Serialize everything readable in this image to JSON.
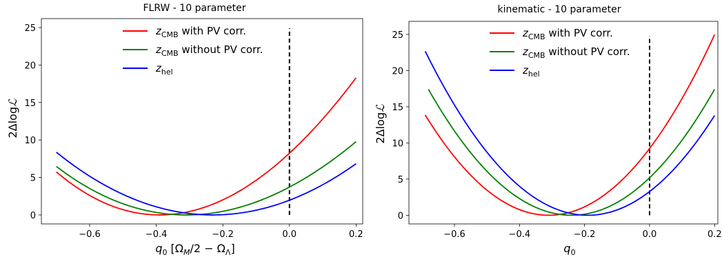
{
  "chart_data": [
    {
      "type": "line",
      "title": "FLRW - 10 parameter",
      "xlabel": "q₀ [Ω_M/2 − Ω_Λ]",
      "xlabel_parts": {
        "main": "q",
        "sub": "0",
        "rest_open": " [Ω",
        "sub2": "M",
        "rest_mid": "/2 − Ω",
        "sub3": "Λ",
        "rest_close": "]"
      },
      "ylabel": "2ΔlogL",
      "xlim": [
        -0.745,
        0.22
      ],
      "ylim": [
        -1.2,
        26.2
      ],
      "xticks": [
        -0.6,
        -0.4,
        -0.2,
        0.0,
        0.2
      ],
      "xtick_labels": [
        "−0.6",
        "−0.4",
        "−0.2",
        "0.0",
        "0.2"
      ],
      "yticks": [
        0,
        5,
        10,
        15,
        20,
        25
      ],
      "ytick_labels": [
        "0",
        "5",
        "10",
        "15",
        "20",
        "25"
      ],
      "legend_location": "top-center",
      "vline": {
        "x": 0.0,
        "y_range": [
          0,
          24.9
        ],
        "style": "dashed",
        "color": "#000000"
      },
      "series": [
        {
          "name": "z_CMB with PV corr.",
          "label_main": "z",
          "label_sub": "CMB",
          "label_rest": " with PV corr.",
          "color": "#ff0000",
          "x_range": [
            -0.7,
            0.2
          ],
          "vertex": [
            -0.39,
            0.0
          ],
          "a": 57.3,
          "b": -8.0
        },
        {
          "name": "z_CMB without PV corr.",
          "label_main": "z",
          "label_sub": "CMB",
          "label_rest": " without PV corr.",
          "color": "#008000",
          "x_range": [
            -0.7,
            0.2
          ],
          "vertex": [
            -0.31,
            0.0
          ],
          "a": 40.4,
          "b": -5.5
        },
        {
          "name": "z_hel",
          "label_main": "z",
          "label_sub": "hel",
          "label_rest": "",
          "color": "#0000ff",
          "x_range": [
            -0.7,
            0.2
          ],
          "vertex": [
            -0.23,
            0.0
          ],
          "a": 37.4,
          "b": -1.0
        }
      ]
    },
    {
      "type": "line",
      "title": "kinematic - 10 parameter",
      "xlabel": "q₀",
      "xlabel_parts": {
        "main": "q",
        "sub": "0"
      },
      "ylabel": "2ΔlogL",
      "xlim": [
        -0.74,
        0.21
      ],
      "ylim": [
        -1.2,
        26.8
      ],
      "xticks": [
        -0.6,
        -0.4,
        -0.2,
        0.0,
        0.2
      ],
      "xtick_labels": [
        "−0.6",
        "−0.4",
        "−0.2",
        "0.0",
        "0.2"
      ],
      "yticks": [
        0,
        5,
        10,
        15,
        20,
        25
      ],
      "ytick_labels": [
        "0",
        "5",
        "10",
        "15",
        "20",
        "25"
      ],
      "legend_location": "top-center",
      "vline": {
        "x": 0.0,
        "y_range": [
          0,
          24.8
        ],
        "style": "dashed",
        "color": "#000000"
      },
      "series": [
        {
          "name": "z_CMB with PV corr.",
          "label_main": "z",
          "label_sub": "CMB",
          "label_rest": " with PV corr.",
          "color": "#ff0000",
          "x_range": [
            -0.69,
            0.2
          ],
          "vertex": [
            -0.31,
            0.0
          ],
          "a": 96.0,
          "b": 0.0
        },
        {
          "name": "z_CMB without PV corr.",
          "label_main": "z",
          "label_sub": "CMB",
          "label_rest": " without PV corr.",
          "color": "#008000",
          "x_range": [
            -0.68,
            0.2
          ],
          "vertex": [
            -0.24,
            0.0
          ],
          "a": 89.9,
          "b": 0.0
        },
        {
          "name": "z_hel",
          "label_main": "z",
          "label_sub": "hel",
          "label_rest": "",
          "color": "#0000ff",
          "x_range": [
            -0.69,
            0.2
          ],
          "vertex": [
            -0.19,
            0.0
          ],
          "a": 90.7,
          "b": 0.0
        }
      ]
    }
  ]
}
